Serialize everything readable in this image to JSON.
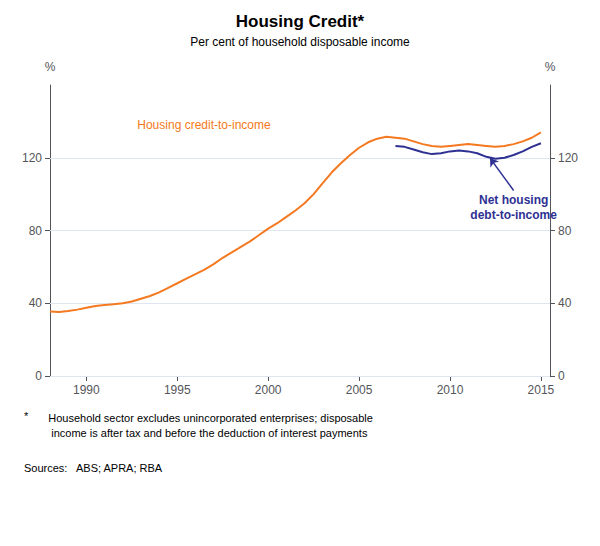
{
  "chart_data": {
    "type": "line",
    "title": "Housing Credit*",
    "subtitle": "Per cent of household disposable income",
    "y_label": "%",
    "y2_label": "%",
    "xlim": [
      1988.0,
      2015.5
    ],
    "xticks": [
      1990,
      1995,
      2000,
      2005,
      2010,
      2015
    ],
    "ylim": [
      0,
      160
    ],
    "yticks": [
      0,
      40,
      80,
      120
    ],
    "y2lim": [
      0,
      160
    ],
    "y2ticks": [
      0,
      40,
      80,
      120
    ],
    "grid": true,
    "series": [
      {
        "color": "#F47920",
        "x": [
          1988.0,
          1988.5,
          1989.0,
          1989.5,
          1990.0,
          1990.5,
          1991.0,
          1991.5,
          1992.0,
          1992.5,
          1993.0,
          1993.5,
          1994.0,
          1994.5,
          1995.0,
          1995.5,
          1996.0,
          1996.5,
          1997.0,
          1997.5,
          1998.0,
          1998.5,
          1999.0,
          1999.5,
          2000.0,
          2000.5,
          2001.0,
          2001.5,
          2002.0,
          2002.5,
          2003.0,
          2003.5,
          2004.0,
          2004.5,
          2005.0,
          2005.5,
          2006.0,
          2006.5,
          2007.0,
          2007.5,
          2008.0,
          2008.5,
          2009.0,
          2009.5,
          2010.0,
          2010.5,
          2011.0,
          2011.5,
          2012.0,
          2012.5,
          2013.0,
          2013.5,
          2014.0,
          2014.5,
          2015.0
        ],
        "values": [
          35.5,
          35.2,
          35.8,
          36.5,
          37.5,
          38.5,
          39.0,
          39.5,
          40.0,
          41.0,
          42.5,
          44.0,
          46.0,
          48.5,
          51.0,
          53.5,
          56.0,
          58.5,
          61.5,
          65.0,
          68.0,
          71.0,
          74.0,
          77.5,
          81.0,
          84.0,
          87.5,
          91.0,
          95.0,
          100.0,
          106.0,
          112.0,
          117.0,
          121.5,
          125.5,
          128.5,
          130.5,
          131.5,
          131.0,
          130.5,
          129.0,
          127.5,
          126.5,
          126.0,
          126.5,
          127.0,
          127.5,
          127.0,
          126.5,
          126.0,
          126.5,
          127.5,
          129.0,
          131.0,
          134.0
        ]
      },
      {
        "color": "#2E3192",
        "x": [
          2007.0,
          2007.5,
          2008.0,
          2008.5,
          2009.0,
          2009.5,
          2010.0,
          2010.5,
          2011.0,
          2011.5,
          2012.0,
          2012.5,
          2013.0,
          2013.5,
          2014.0,
          2014.5,
          2015.0
        ],
        "values": [
          126.5,
          126.0,
          124.5,
          123.0,
          122.0,
          122.5,
          123.5,
          124.0,
          123.5,
          122.5,
          120.5,
          119.5,
          120.0,
          121.5,
          123.5,
          126.0,
          128.0
        ]
      }
    ],
    "annotations": [
      {
        "text": "Housing credit-to-income",
        "x": 1992.8,
        "y": 138,
        "color": "#F47920",
        "series": 0
      },
      {
        "text": "Net housing\ndebt-to-income",
        "x": 2013.5,
        "y": 102,
        "arrow_x": 2012.2,
        "arrow_y": 119.8,
        "color": "#2E3192",
        "series": 1
      }
    ],
    "footnote_marker": "*",
    "footnote": "    Household sector excludes unincorporated enterprises; disposable\n     income is after tax and before the deduction of interest payments",
    "sources": "Sources:   ABS; APRA; RBA"
  }
}
